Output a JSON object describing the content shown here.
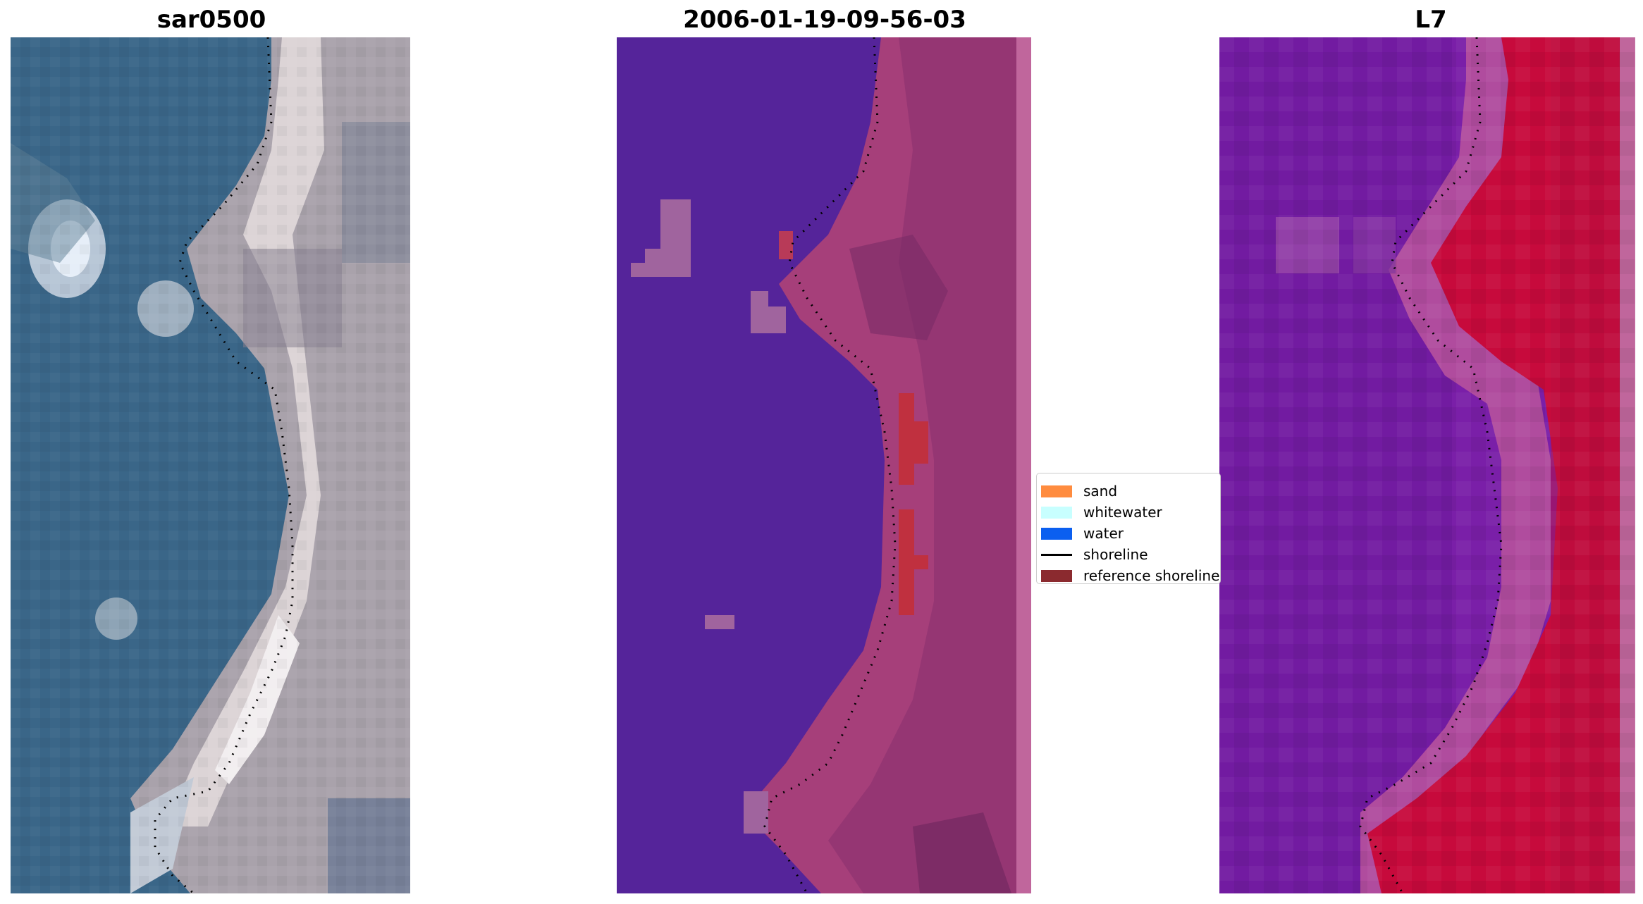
{
  "panels": [
    {
      "title": "sar0500",
      "image": "rgb-satellite"
    },
    {
      "title": "2006-01-19-09-56-03",
      "image": "classified-overlay"
    },
    {
      "title": "L7",
      "image": "index-map"
    }
  ],
  "legend": {
    "entries": [
      {
        "label": "sand",
        "kind": "patch",
        "color": "#ff8c3f"
      },
      {
        "label": "whitewater",
        "kind": "patch",
        "color": "#c8ffff"
      },
      {
        "label": "water",
        "kind": "patch",
        "color": "#0b5ff0"
      },
      {
        "label": "shoreline",
        "kind": "line",
        "color": "#000000"
      },
      {
        "label": "reference shoreline",
        "kind": "patch",
        "color": "#8b2a2f"
      }
    ]
  },
  "colors": {
    "rgb_water": "#3a6688",
    "rgb_sand": "#b9b4b8",
    "class_water": "#55249a",
    "class_land": "#a63f7a",
    "class_red": "#c0303f",
    "index_water": "#7a1fa8",
    "index_land": "#c70a3c"
  }
}
